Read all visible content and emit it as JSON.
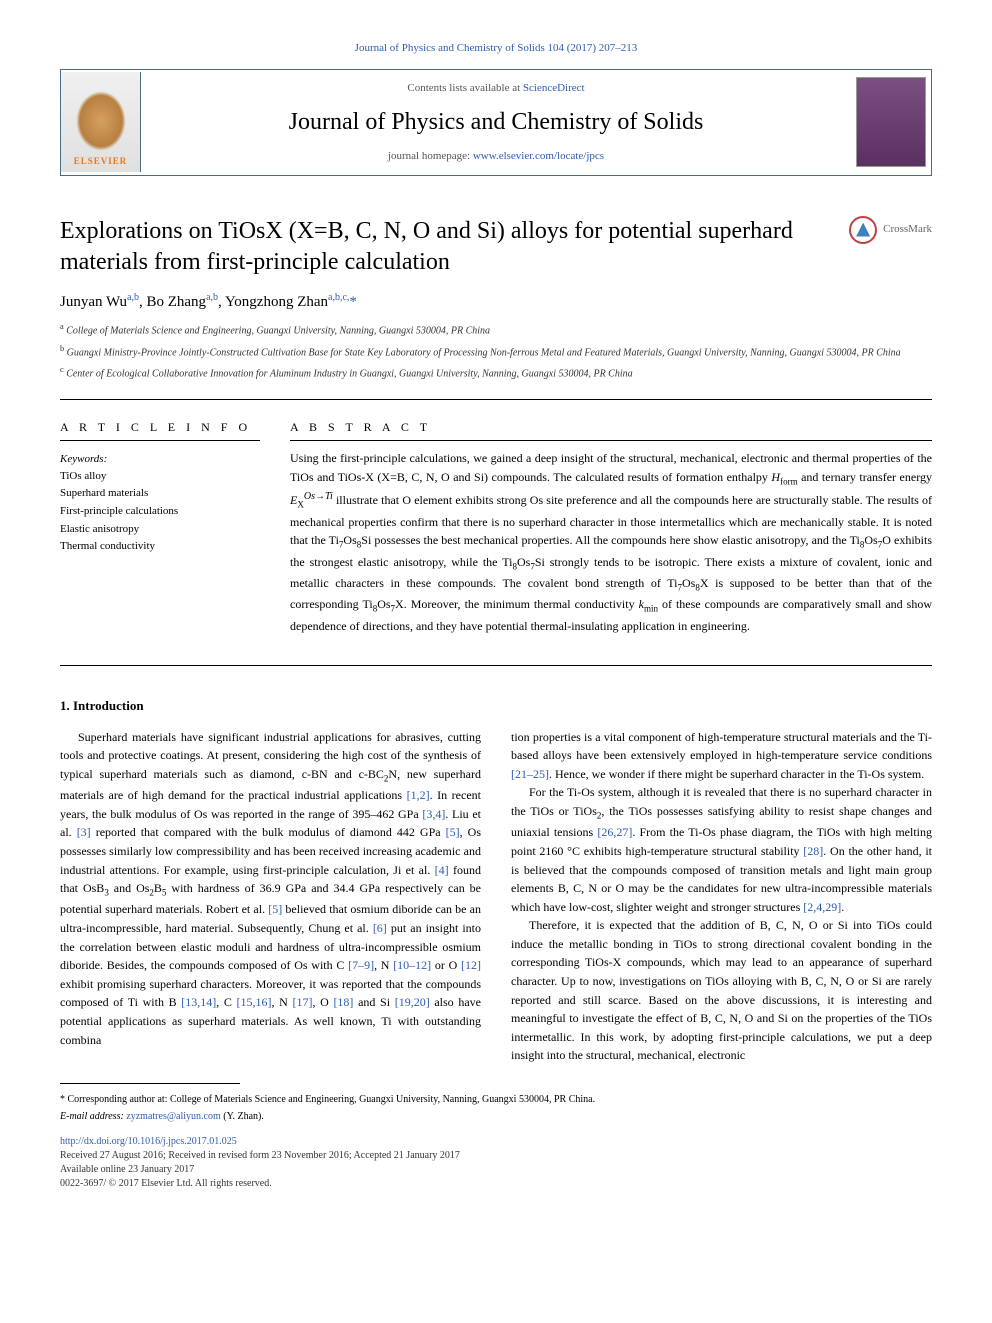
{
  "top_citation": "Journal of Physics and Chemistry of Solids 104 (2017) 207–213",
  "header": {
    "elsevier_label": "ELSEVIER",
    "contents_prefix": "Contents lists available at ",
    "contents_link": "ScienceDirect",
    "journal_title": "Journal of Physics and Chemistry of Solids",
    "homepage_prefix": "journal homepage: ",
    "homepage_link": "www.elsevier.com/locate/jpcs"
  },
  "article": {
    "title": "Explorations on TiOsX (X=B, C, N, O and Si) alloys for potential superhard materials from first-principle calculation",
    "crossmark_label": "CrossMark",
    "authors_html": "Junyan Wu<sup>a,b</sup>, Bo Zhang<sup>a,b</sup>, Yongzhong Zhan<sup>a,b,c,</sup><span class='corr'>*</span>",
    "affiliations": [
      {
        "sup": "a",
        "text": "College of Materials Science and Engineering, Guangxi University, Nanning, Guangxi 530004, PR China"
      },
      {
        "sup": "b",
        "text": "Guangxi Ministry-Province Jointly-Constructed Cultivation Base for State Key Laboratory of Processing Non-ferrous Metal and Featured Materials, Guangxi University, Nanning, Guangxi 530004, PR China"
      },
      {
        "sup": "c",
        "text": "Center of Ecological Collaborative Innovation for Aluminum Industry in Guangxi, Guangxi University, Nanning, Guangxi 530004, PR China"
      }
    ]
  },
  "info": {
    "header": "A R T I C L E  I N F O",
    "keywords_label": "Keywords:",
    "keywords": [
      "TiOs alloy",
      "Superhard materials",
      "First-principle calculations",
      "Elastic anisotropy",
      "Thermal conductivity"
    ]
  },
  "abstract": {
    "header": "A B S T R A C T",
    "text": "Using the first-principle calculations, we gained a deep insight of the structural, mechanical, electronic and thermal properties of the TiOs and TiOs-X (X=B, C, N, O and Si) compounds. The calculated results of formation enthalpy Hform and ternary transfer energy EXOs→Ti illustrate that O element exhibits strong Os site preference and all the compounds here are structurally stable. The results of mechanical properties confirm that there is no superhard character in those intermetallics which are mechanically stable. It is noted that the Ti7Os8Si possesses the best mechanical properties. All the compounds here show elastic anisotropy, and the Ti8Os7O exhibits the strongest elastic anisotropy, while the Ti8Os7Si strongly tends to be isotropic. There exists a mixture of covalent, ionic and metallic characters in these compounds. The covalent bond strength of Ti7Os8X is supposed to be better than that of the corresponding Ti8Os7X. Moreover, the minimum thermal conductivity kmin of these compounds are comparatively small and show dependence of directions, and they have potential thermal-insulating application in engineering."
  },
  "section1": {
    "title": "1. Introduction",
    "para1": "Superhard materials have significant industrial applications for abrasives, cutting tools and protective coatings. At present, considering the high cost of the synthesis of typical superhard materials such as diamond, c-BN and c-BC2N, new superhard materials are of high demand for the practical industrial applications [1,2]. In recent years, the bulk modulus of Os was reported in the range of 395–462 GPa [3,4]. Liu et al. [3] reported that compared with the bulk modulus of diamond 442 GPa [5], Os possesses similarly low compressibility and has been received increasing academic and industrial attentions. For example, using first-principle calculation, Ji et al. [4] found that OsB3 and Os2B5 with hardness of 36.9 GPa and 34.4 GPa respectively can be potential superhard materials. Robert et al. [5] believed that osmium diboride can be an ultra-incompressible, hard material. Subsequently, Chung et al. [6] put an insight into the correlation between elastic moduli and hardness of ultra-incompressible osmium diboride. Besides, the compounds composed of Os with C [7–9], N [10–12] or O [12] exhibit promising superhard characters. Moreover, it was reported that the compounds composed of Ti with B [13,14], C [15,16], N [17], O [18] and Si [19,20] also have potential applications as superhard materials. As well known, Ti with outstanding combina",
    "para2": "tion properties is a vital component of high-temperature structural materials and the Ti-based alloys have been extensively employed in high-temperature service conditions [21–25]. Hence, we wonder if there might be superhard character in the Ti-Os system.",
    "para3": "For the Ti-Os system, although it is revealed that there is no superhard character in the TiOs or TiOs2, the TiOs possesses satisfying ability to resist shape changes and uniaxial tensions [26,27]. From the Ti-Os phase diagram, the TiOs with high melting point 2160 °C exhibits high-temperature structural stability [28]. On the other hand, it is believed that the compounds composed of transition metals and light main group elements B, C, N or O may be the candidates for new ultra-incompressible materials which have low-cost, slighter weight and stronger structures [2,4,29].",
    "para4": "Therefore, it is expected that the addition of B, C, N, O or Si into TiOs could induce the metallic bonding in TiOs to strong directional covalent bonding in the corresponding TiOs-X compounds, which may lead to an appearance of superhard character. Up to now, investigations on TiOs alloying with B, C, N, O or Si are rarely reported and still scarce. Based on the above discussions, it is interesting and meaningful to investigate the effect of B, C, N, O and Si on the properties of the TiOs intermetallic. In this work, by adopting first-principle calculations, we put a deep insight into the structural, mechanical, electronic"
  },
  "footer": {
    "corr_text": "* Corresponding author at: College of Materials Science and Engineering, Guangxi University, Nanning, Guangxi 530004, PR China.",
    "email_label": "E-mail address: ",
    "email": "zyzmatres@aliyun.com",
    "email_suffix": " (Y. Zhan).",
    "doi": "http://dx.doi.org/10.1016/j.jpcs.2017.01.025",
    "received": "Received 27 August 2016; Received in revised form 23 November 2016; Accepted 21 January 2017",
    "available": "Available online 23 January 2017",
    "copyright": "0022-3697/ © 2017 Elsevier Ltd. All rights reserved."
  },
  "colors": {
    "link": "#2e5db0",
    "elsevier_orange": "#e67817",
    "border": "#4a6a8a"
  }
}
